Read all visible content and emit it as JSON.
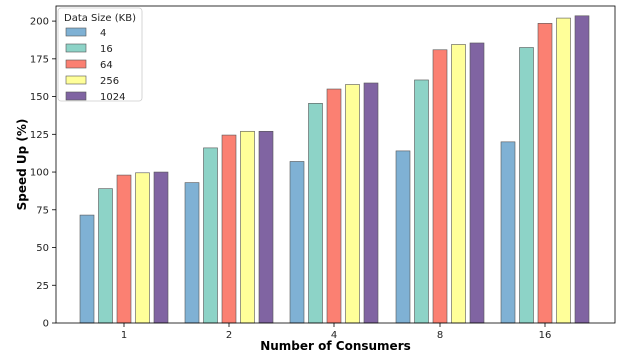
{
  "chart_data": {
    "type": "bar",
    "title": "",
    "xlabel": "Number of Consumers",
    "ylabel": "Speed Up (%)",
    "categories": [
      "1",
      "2",
      "4",
      "8",
      "16"
    ],
    "ylim": [
      0,
      210
    ],
    "yticks": [
      0,
      25,
      50,
      75,
      100,
      125,
      150,
      175,
      200
    ],
    "grid": false,
    "legend": {
      "title": "Data Size (KB)",
      "placement": "top-left"
    },
    "series": [
      {
        "name": "4",
        "color": "#7fb1d4",
        "values": [
          71.5,
          93,
          107,
          114,
          120
        ]
      },
      {
        "name": "16",
        "color": "#8dd3c7",
        "values": [
          89,
          116,
          145.5,
          161,
          182.5
        ]
      },
      {
        "name": "64",
        "color": "#fb8072",
        "values": [
          98,
          124.5,
          155,
          181,
          198.5
        ]
      },
      {
        "name": "256",
        "color": "#ffff99",
        "values": [
          99.5,
          127,
          158,
          184.5,
          202
        ]
      },
      {
        "name": "1024",
        "color": "#8064a2",
        "values": [
          100,
          127,
          159,
          185.5,
          203.5
        ]
      }
    ]
  }
}
